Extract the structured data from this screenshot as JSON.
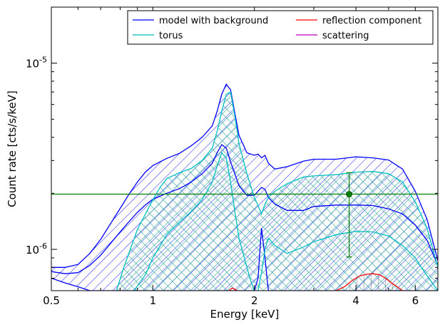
{
  "chart_data": {
    "type": "line",
    "xlabel": "Energy [keV]",
    "ylabel": "Count rate [cts/s/keV]",
    "xscale": "log",
    "yscale": "log",
    "xlim": [
      0.5,
      7.0
    ],
    "ylim": [
      6e-07,
      2e-05
    ],
    "x_ticks": [
      {
        "value": 0.5,
        "label": "0.5"
      },
      {
        "value": 1,
        "label": "1"
      },
      {
        "value": 2,
        "label": "2"
      },
      {
        "value": 4,
        "label": "4"
      },
      {
        "value": 6,
        "label": "6"
      }
    ],
    "y_ticks": [
      {
        "value": 1e-06,
        "base": "10",
        "exp": "-6"
      },
      {
        "value": 1e-05,
        "base": "10",
        "exp": "-5"
      }
    ],
    "legend": {
      "placement": "top-right",
      "columns": 2,
      "entries": [
        {
          "label": "model with background",
          "color": "#0000ff"
        },
        {
          "label": "reflection component",
          "color": "#ff0000"
        },
        {
          "label": "torus",
          "color": "#00bfbf"
        },
        {
          "label": "scattering",
          "color": "#bf00bf"
        }
      ]
    },
    "series": [
      {
        "key": "model",
        "color": "#0000ff",
        "hatch": "diagonal",
        "x": [
          0.5,
          0.55,
          0.6,
          0.65,
          0.7,
          0.75,
          0.8,
          0.85,
          0.9,
          0.95,
          1.0,
          1.1,
          1.2,
          1.3,
          1.4,
          1.5,
          1.55,
          1.6,
          1.65,
          1.7,
          1.75,
          1.8,
          1.9,
          2.0,
          2.05,
          2.1,
          2.15,
          2.2,
          2.3,
          2.5,
          2.8,
          3.0,
          3.5,
          4.0,
          4.5,
          5.0,
          5.5,
          6.0,
          6.5,
          7.0
        ],
        "upper": [
          8e-07,
          8e-07,
          8.3e-07,
          9.5e-07,
          1.13e-06,
          1.38e-06,
          1.66e-06,
          1.98e-06,
          2.3e-06,
          2.6e-06,
          2.82e-06,
          3.08e-06,
          3.28e-06,
          3.6e-06,
          4e-06,
          4.6e-06,
          5.5e-06,
          6.8e-06,
          7.7e-06,
          7.2e-06,
          5.4e-06,
          4.1e-06,
          3.3e-06,
          3.2e-06,
          3.25e-06,
          3.1e-06,
          3.2e-06,
          2.9e-06,
          2.7e-06,
          2.78e-06,
          2.98e-06,
          3.05e-06,
          3.05e-06,
          3.14e-06,
          3.1e-06,
          3.02e-06,
          2.7e-06,
          2.05e-06,
          1.45e-06,
          8.7e-07
        ],
        "middle": [
          7.6e-07,
          7.4e-07,
          7.5e-07,
          8.2e-07,
          9.3e-07,
          1.08e-06,
          1.24e-06,
          1.41e-06,
          1.58e-06,
          1.73e-06,
          1.86e-06,
          2e-06,
          2.12e-06,
          2.3e-06,
          2.55e-06,
          2.9e-06,
          3.3e-06,
          3.65e-06,
          3.5e-06,
          2.95e-06,
          2.55e-06,
          2.2e-06,
          1.95e-06,
          1.95e-06,
          2.05e-06,
          2.15e-06,
          2.1e-06,
          1.9e-06,
          1.75e-06,
          1.62e-06,
          1.62e-06,
          1.7e-06,
          1.73e-06,
          1.73e-06,
          1.72e-06,
          1.65e-06,
          1.55e-06,
          1.35e-06,
          1.12e-06,
          8.2e-07
        ],
        "lower": [
          7e-07,
          6.6e-07,
          6.3e-07,
          6e-07,
          6e-07,
          6e-07,
          6e-07,
          6e-07,
          6e-07,
          6e-07,
          6e-07,
          6e-07,
          6e-07,
          6e-07,
          6e-07,
          6e-07,
          6e-07,
          6e-07,
          6e-07,
          6e-07,
          6e-07,
          6e-07,
          6e-07,
          6e-07,
          7e-07,
          1.3e-06,
          9e-07,
          6e-07,
          6e-07,
          6e-07,
          6e-07,
          6e-07,
          6e-07,
          6e-07,
          6e-07,
          6e-07,
          6e-07,
          6e-07,
          6e-07,
          6e-07
        ]
      },
      {
        "key": "torus",
        "color": "#00bfbf",
        "hatch": "cross",
        "x": [
          0.78,
          0.82,
          0.9,
          1.0,
          1.05,
          1.1,
          1.2,
          1.3,
          1.4,
          1.5,
          1.55,
          1.6,
          1.65,
          1.7,
          1.75,
          1.8,
          1.9,
          2.0,
          2.05,
          2.1,
          2.15,
          2.2,
          2.3,
          2.5,
          2.8,
          3.0,
          3.5,
          4.0,
          4.5,
          5.0,
          5.5,
          6.0,
          6.5,
          7.0
        ],
        "upper": [
          6e-07,
          8e-07,
          1.28e-06,
          1.85e-06,
          2.15e-06,
          2.4e-06,
          2.58e-06,
          2.72e-06,
          3e-06,
          3.5e-06,
          4.3e-06,
          5.5e-06,
          6.8e-06,
          7e-06,
          5.2e-06,
          3.7e-06,
          2.55e-06,
          1.9e-06,
          1.72e-06,
          1.55e-06,
          1.75e-06,
          1.9e-06,
          2.05e-06,
          2.25e-06,
          2.45e-06,
          2.48e-06,
          2.52e-06,
          2.6e-06,
          2.62e-06,
          2.55e-06,
          2.3e-06,
          1.8e-06,
          1.3e-06,
          8e-07
        ],
        "lower": [
          6e-07,
          6e-07,
          6e-07,
          6e-07,
          6e-07,
          6e-07,
          6e-07,
          6e-07,
          6e-07,
          6e-07,
          6e-07,
          6e-07,
          6e-07,
          6e-07,
          6e-07,
          6e-07,
          6e-07,
          6e-07,
          6e-07,
          6e-07,
          6e-07,
          6e-07,
          6e-07,
          6e-07,
          6e-07,
          6e-07,
          6e-07,
          6e-07,
          6e-07,
          6e-07,
          6e-07,
          6e-07,
          6e-07,
          6e-07
        ],
        "middle_x": [
          0.88,
          0.95,
          1.0,
          1.1,
          1.2,
          1.3,
          1.4,
          1.5,
          1.55,
          1.6,
          1.65,
          1.7,
          1.75,
          1.8,
          1.9,
          1.95,
          2.0,
          2.05,
          2.1,
          2.15,
          2.2,
          2.3,
          2.5,
          2.8,
          3.0,
          3.5,
          4.0,
          4.5,
          5.0,
          5.5,
          6.0,
          6.5,
          7.0
        ],
        "middle": [
          6e-07,
          7.3e-07,
          9e-07,
          1.2e-06,
          1.4e-06,
          1.6e-06,
          1.85e-06,
          2.3e-06,
          2.8e-06,
          3.3e-06,
          3.1e-06,
          2.3e-06,
          1.6e-06,
          1.15e-06,
          8e-07,
          6.8e-07,
          6e-07,
          6e-07,
          7.5e-07,
          1e-06,
          1.15e-06,
          1.05e-06,
          9.5e-07,
          1.03e-06,
          1.1e-06,
          1.2e-06,
          1.25e-06,
          1.24e-06,
          1.18e-06,
          1.05e-06,
          9e-07,
          7.2e-07,
          6e-07
        ]
      },
      {
        "key": "reflection",
        "color": "#ff0000",
        "x": [
          3.5,
          3.7,
          3.9,
          4.1,
          4.3,
          4.5,
          4.7,
          4.9,
          5.1,
          5.3,
          5.5
        ],
        "upper": [
          6e-07,
          6.3e-07,
          6.8e-07,
          7.2e-07,
          7.35e-07,
          7.4e-07,
          7.3e-07,
          7e-07,
          6.6e-07,
          6.3e-07,
          6e-07
        ]
      },
      {
        "key": "reflection_line",
        "color": "#ff0000",
        "x": [
          1.68,
          1.72,
          1.75,
          1.78
        ],
        "upper": [
          6e-07,
          6.2e-07,
          6.1e-07,
          6e-07
        ]
      }
    ],
    "reference_line": {
      "y": 1.98e-06,
      "color": "#008000"
    },
    "data_point": {
      "x": 3.82,
      "y": 1.98e-06,
      "y_err_low": 9.1e-07,
      "y_err_high": 2.58e-06,
      "color": "#008000"
    }
  }
}
